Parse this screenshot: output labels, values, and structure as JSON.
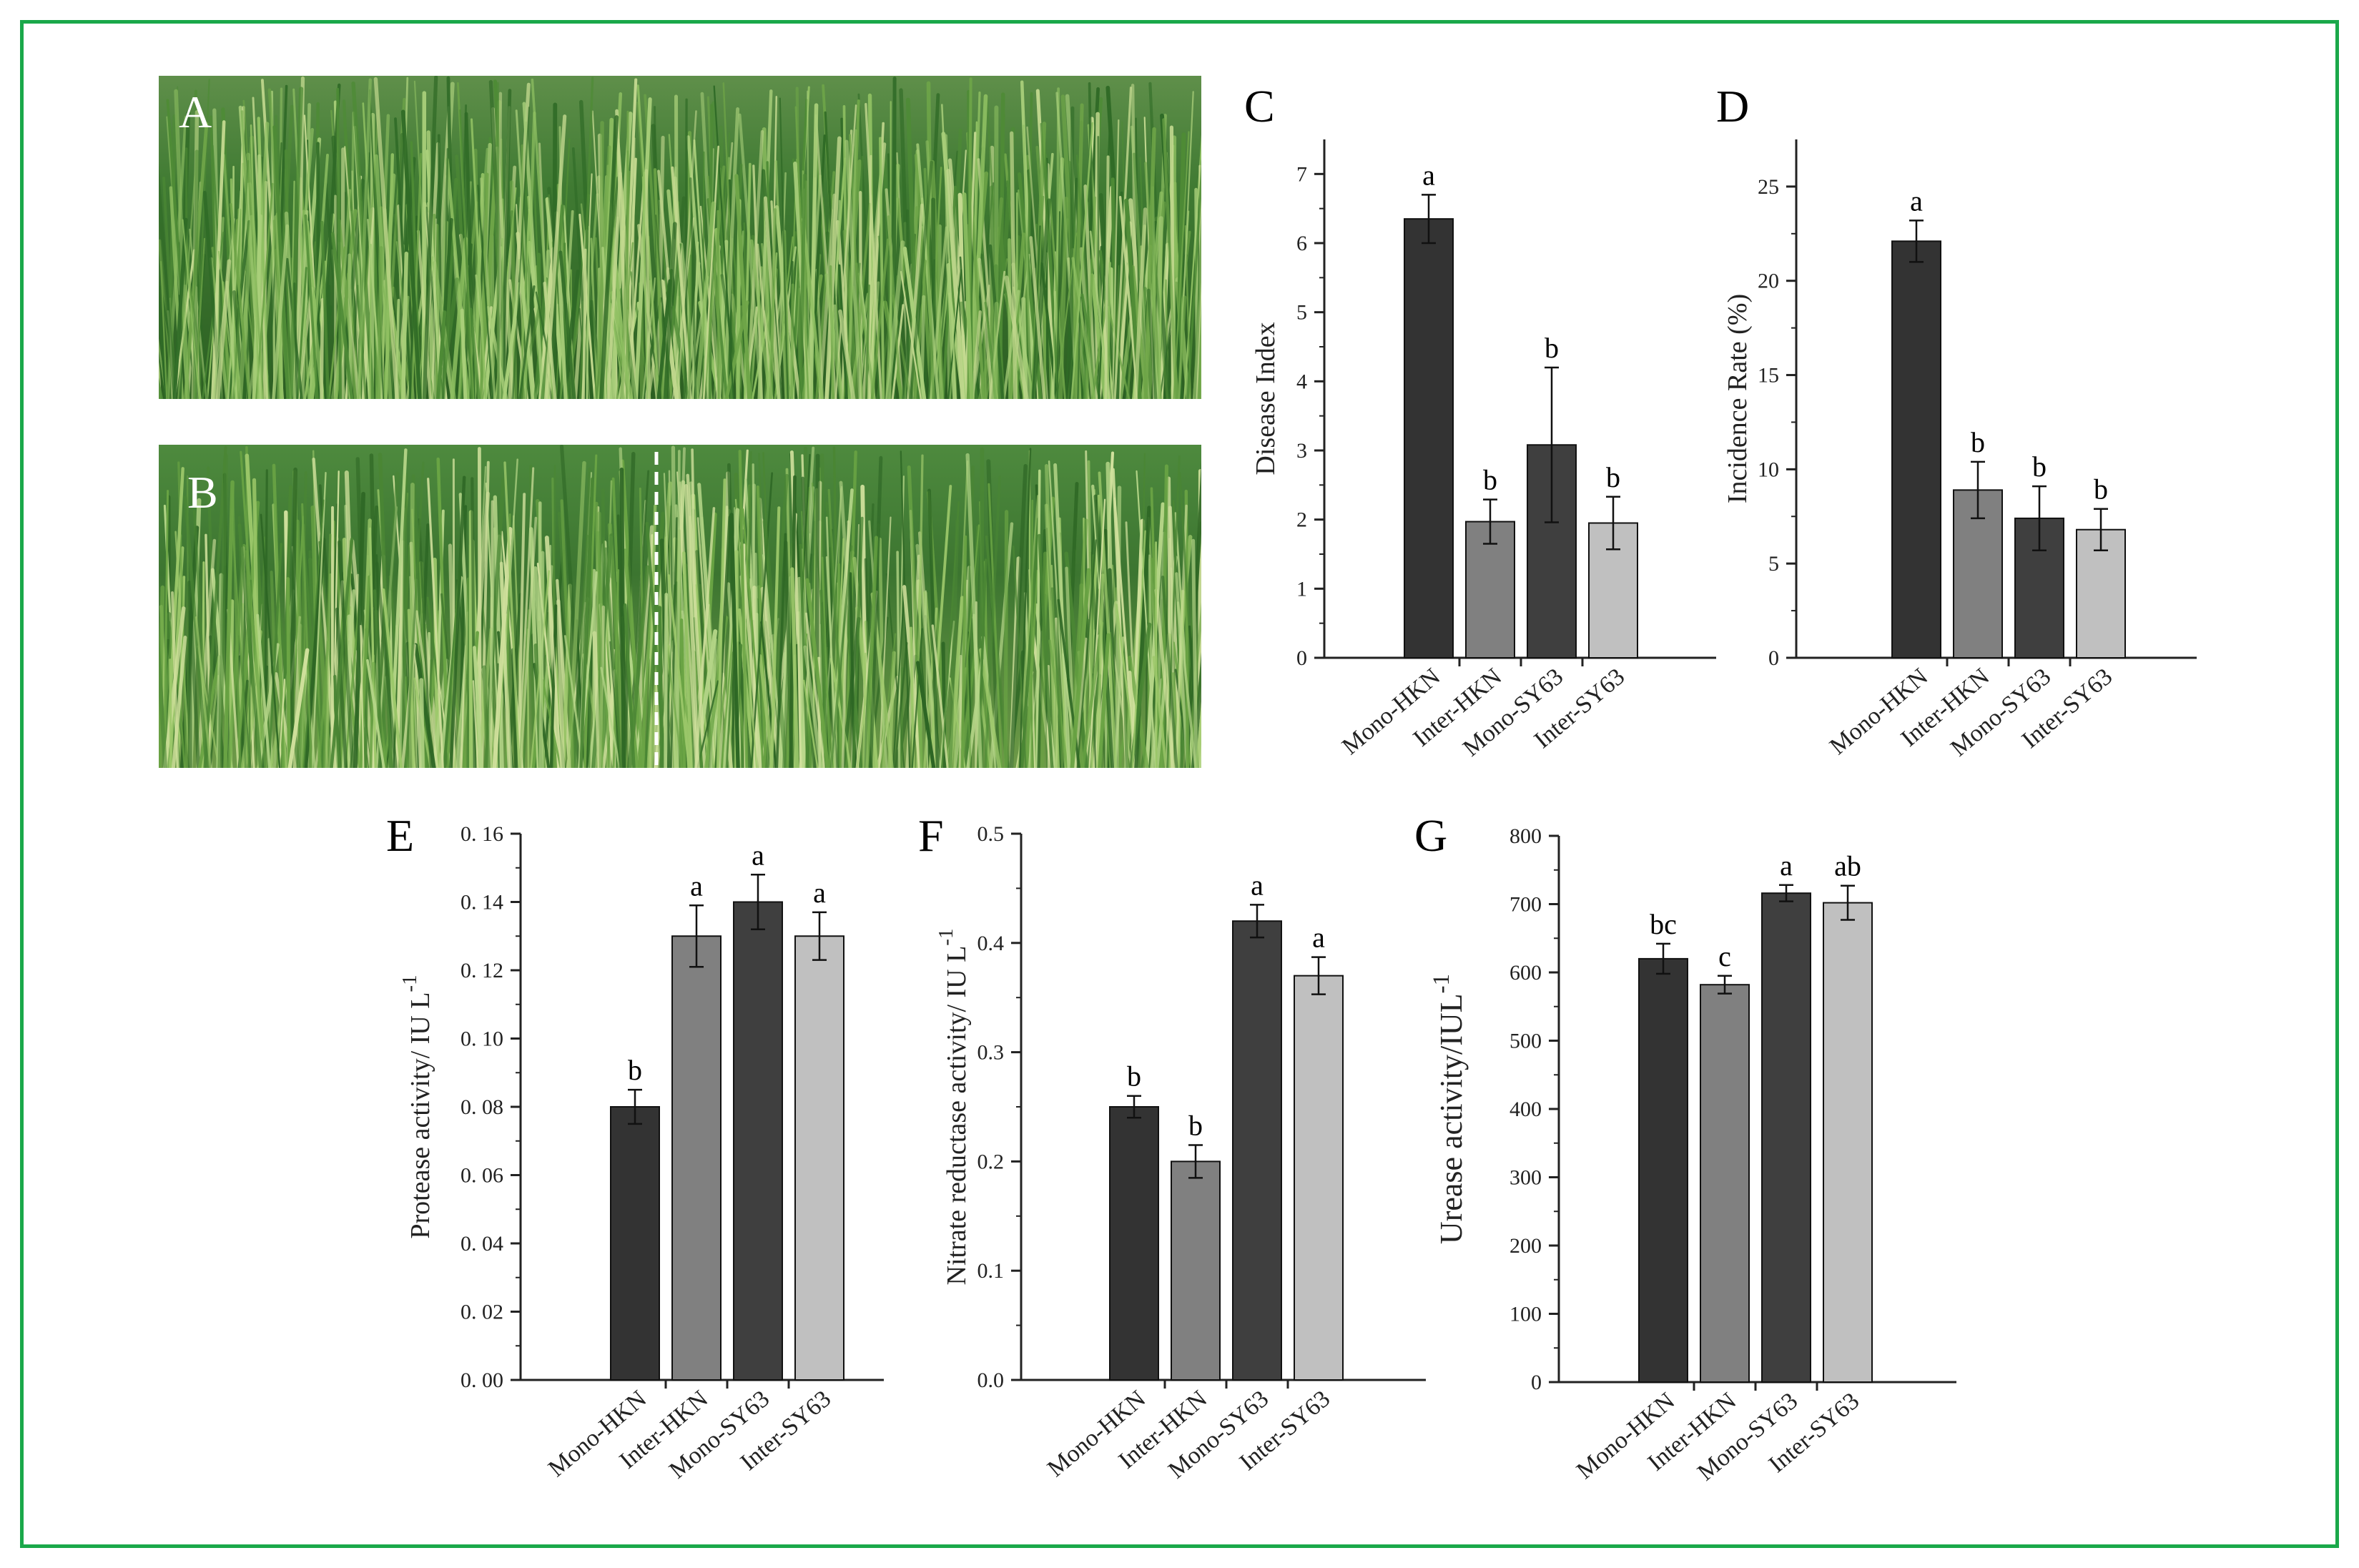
{
  "panels": {
    "A": "A",
    "B": "B"
  },
  "colors": {
    "frame": "#1aa84a",
    "mono_hkn": "#333333",
    "inter_hkn": "#808080",
    "mono_sy63": "#3f3f3f",
    "inter_sy63": "#c0c0c0"
  },
  "chart_data": [
    {
      "id": "C",
      "letter": "C",
      "type": "bar",
      "categories": [
        "Mono-HKN",
        "Inter-HKN",
        "Mono-SY63",
        "Inter-SY63"
      ],
      "values": [
        6.35,
        1.97,
        3.08,
        1.95
      ],
      "errors": [
        0.35,
        0.32,
        1.12,
        0.38
      ],
      "letters": [
        "a",
        "b",
        "b",
        "b"
      ],
      "ylabel": "Disease Index",
      "ylabel_sup": "",
      "ylim": [
        0,
        7.5
      ],
      "yticks": [
        0,
        1,
        2,
        3,
        4,
        5,
        6,
        7
      ],
      "ytick_labels": [
        "0",
        "1",
        "2",
        "3",
        "4",
        "5",
        "6",
        "7"
      ]
    },
    {
      "id": "D",
      "letter": "D",
      "type": "bar",
      "categories": [
        "Mono-HKN",
        "Inter-HKN",
        "Mono-SY63",
        "Inter-SY63"
      ],
      "values": [
        22.1,
        8.9,
        7.4,
        6.8
      ],
      "errors": [
        1.1,
        1.5,
        1.7,
        1.1
      ],
      "letters": [
        "a",
        "b",
        "b",
        "b"
      ],
      "ylabel": "Incidence Rate (%)",
      "ylabel_sup": "",
      "ylim": [
        0,
        27.5
      ],
      "yticks": [
        0,
        5,
        10,
        15,
        20,
        25
      ],
      "ytick_labels": [
        "0",
        "5",
        "10",
        "15",
        "20",
        "25"
      ]
    },
    {
      "id": "E",
      "letter": "E",
      "type": "bar",
      "categories": [
        "Mono-HKN",
        "Inter-HKN",
        "Mono-SY63",
        "Inter-SY63"
      ],
      "values": [
        0.08,
        0.13,
        0.14,
        0.13
      ],
      "errors": [
        0.005,
        0.009,
        0.008,
        0.007
      ],
      "letters": [
        "b",
        "a",
        "a",
        "a"
      ],
      "ylabel": "Protease activity/ IU L",
      "ylabel_sup": "-1",
      "ylim": [
        0,
        0.16
      ],
      "yticks": [
        0,
        0.02,
        0.04,
        0.06,
        0.08,
        0.1,
        0.12,
        0.14,
        0.16
      ],
      "ytick_labels": [
        "0. 00",
        "0. 02",
        "0. 04",
        "0. 06",
        "0. 08",
        "0. 10",
        "0. 12",
        "0. 14",
        "0. 16"
      ]
    },
    {
      "id": "F",
      "letter": "F",
      "type": "bar",
      "categories": [
        "Mono-HKN",
        "Inter-HKN",
        "Mono-SY63",
        "Inter-SY63"
      ],
      "values": [
        0.25,
        0.2,
        0.42,
        0.37
      ],
      "errors": [
        0.01,
        0.015,
        0.015,
        0.017
      ],
      "letters": [
        "b",
        "b",
        "a",
        "a"
      ],
      "ylabel": "Nitrate reductase activity/ IU L",
      "ylabel_sup": "-1",
      "ylim": [
        0,
        0.5
      ],
      "yticks": [
        0,
        0.1,
        0.2,
        0.3,
        0.4,
        0.5
      ],
      "ytick_labels": [
        "0.0",
        "0.1",
        "0.2",
        "0.3",
        "0.4",
        "0.5"
      ]
    },
    {
      "id": "G",
      "letter": "G",
      "type": "bar",
      "categories": [
        "Mono-HKN",
        "Inter-HKN",
        "Mono-SY63",
        "Inter-SY63"
      ],
      "values": [
        620,
        582,
        716,
        702
      ],
      "errors": [
        22,
        13,
        12,
        25
      ],
      "letters": [
        "bc",
        "c",
        "a",
        "ab"
      ],
      "ylabel": "Urease activity/IUL",
      "ylabel_sup": "-1",
      "ylim": [
        0,
        800
      ],
      "yticks": [
        0,
        100,
        200,
        300,
        400,
        500,
        600,
        700,
        800
      ],
      "ytick_labels": [
        "0",
        "100",
        "200",
        "300",
        "400",
        "500",
        "600",
        "700",
        "800"
      ]
    }
  ]
}
